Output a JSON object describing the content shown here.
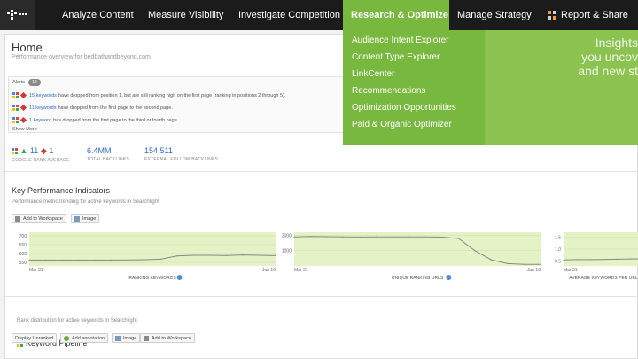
{
  "nav": {
    "items": [
      {
        "label": "Analyze Content"
      },
      {
        "label": "Measure Visibility"
      },
      {
        "label": "Investigate Competition"
      },
      {
        "label": "Research & Optimize"
      },
      {
        "label": "Manage Strategy"
      },
      {
        "label": "Report & Share"
      }
    ],
    "active_color": "#79b83e"
  },
  "dropdown": {
    "items": [
      {
        "label": "Audience Intent Explorer"
      },
      {
        "label": "Content Type Explorer"
      },
      {
        "label": "LinkCenter"
      },
      {
        "label": "Recommendations"
      },
      {
        "label": "Optimization Opportunities"
      },
      {
        "label": "Paid & Organic Optimizer"
      }
    ],
    "promo_lines": [
      "Insights",
      "you uncov",
      "and new st"
    ]
  },
  "home": {
    "title": "Home",
    "subtitle": "Performance overview for bedbathandbeyond.com"
  },
  "alerts": {
    "label": "Alerts",
    "count": "18",
    "rows": [
      {
        "link": "15 keywords",
        "text": "have dropped from position 1, but are still ranking high on the first page (ranking in positions 2 through 5)."
      },
      {
        "link": "11 keywords",
        "text": "have dropped from the first page to the second page."
      },
      {
        "link": "1 keyword",
        "text": "has dropped from the first page to the third or fourth page."
      }
    ],
    "show_more": "Show More"
  },
  "stats": {
    "rank_up": "11",
    "rank_down": "1",
    "rank_label": "GOOGLE RANK AVERAGE",
    "backlinks_value": "6.4MM",
    "backlinks_label": "TOTAL BACKLINKS",
    "follow_value": "154,511",
    "follow_label": "EXTERNAL FOLLOW BACKLINKS"
  },
  "kpi": {
    "title": "Key Performance Indicators",
    "subtitle": "Performance metric trending for active keywords in Searchlight",
    "add_workspace": "Add to Workspace",
    "image": "Image"
  },
  "chart_data": [
    {
      "type": "line",
      "xlabel": "RANKING KEYWORDS",
      "x_start": "Mar 31",
      "x_end": "Jun 16",
      "yticks": [
        "700",
        "650",
        "600",
        "550"
      ],
      "ylim": [
        530,
        720
      ],
      "values": [
        563,
        563,
        563,
        563,
        563,
        563,
        564,
        565,
        568,
        586,
        590,
        590,
        589,
        592,
        590,
        588
      ],
      "fill": "#e4f2c6",
      "line": "#888888"
    },
    {
      "type": "line",
      "xlabel": "UNIQUE RANKING URLS",
      "x_start": "Mar 31",
      "x_end": "Jun 16",
      "yticks": [
        "2000",
        "1000"
      ],
      "ylim": [
        0,
        2200
      ],
      "values": [
        1900,
        1920,
        1910,
        1900,
        1890,
        1900,
        1900,
        1900,
        1900,
        1880,
        1800,
        1000,
        400,
        150,
        100,
        100
      ],
      "fill": "#e4f2c6",
      "line": "#888888"
    },
    {
      "type": "line",
      "xlabel": "AVERAGE KEYWORDS PER URL",
      "x_start": "Mar 31",
      "x_end": "",
      "yticks": [
        "1.5",
        "1.0",
        "0.5"
      ],
      "ylim": [
        0.3,
        1.7
      ],
      "values": [
        0.55,
        0.56,
        0.56,
        0.57,
        0.58,
        0.59,
        0.6
      ],
      "fill": "#e4f2c6",
      "line": "#888888"
    }
  ],
  "pipeline": {
    "title": "Keyword Pipeline",
    "subtitle": "Rank distribution for active keywords in Searchlight",
    "display_unranked": "Display Unranked",
    "add_annotation": "Add annotation",
    "image": "Image",
    "add_workspace": "Add to Workspace"
  }
}
